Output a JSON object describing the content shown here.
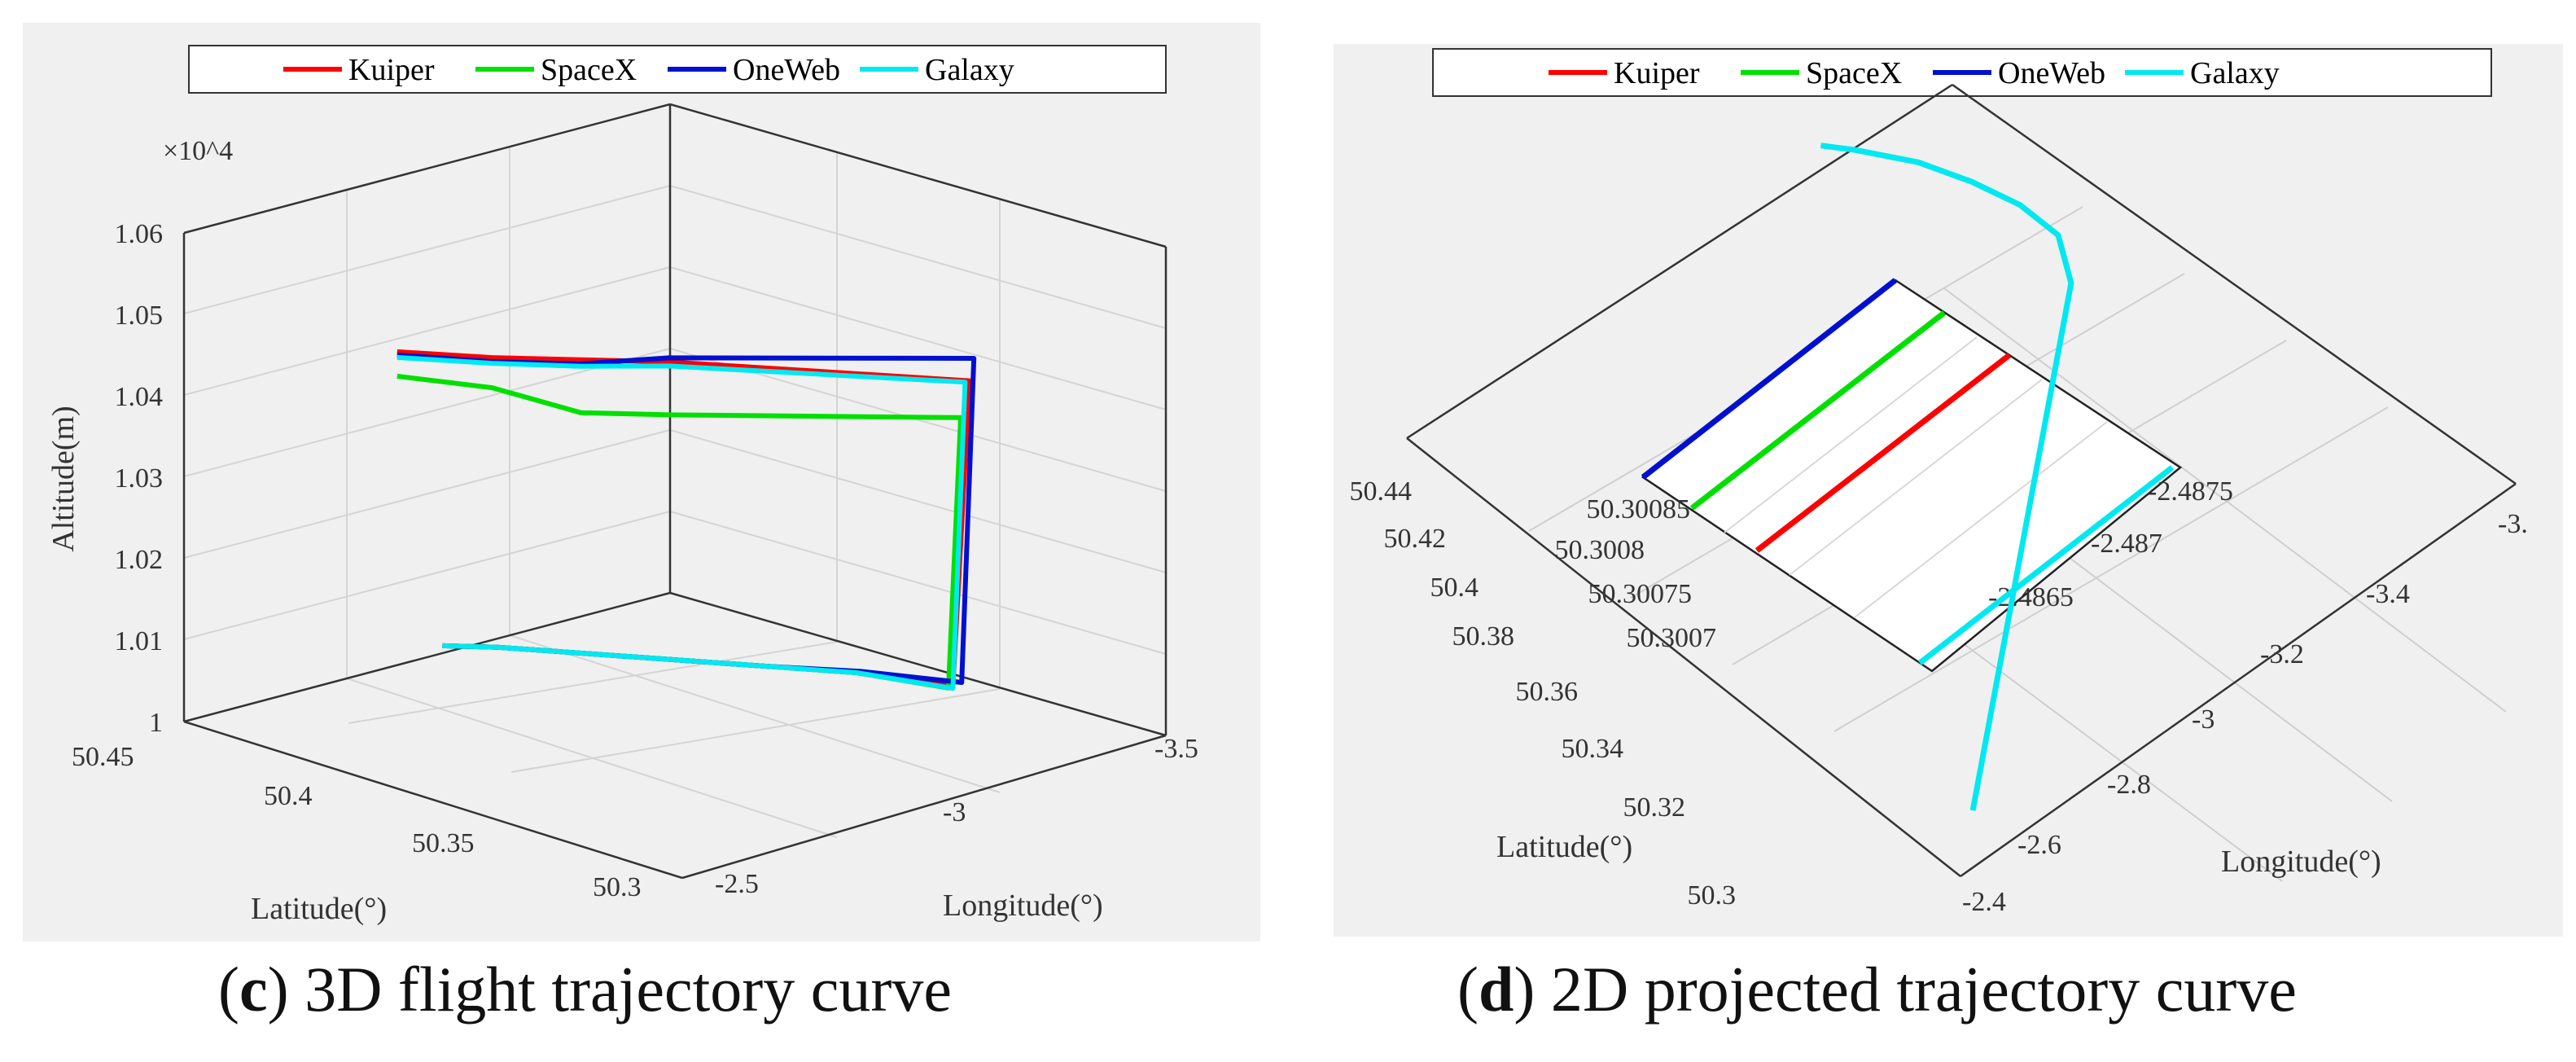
{
  "legend": [
    "Kuiper",
    "SpaceX",
    "OneWeb",
    "Galaxy"
  ],
  "colors": {
    "Kuiper": "#ff0000",
    "SpaceX": "#00e000",
    "OneWeb": "#0010d0",
    "Galaxy": "#00e8f0",
    "grid": "#d8d8d8",
    "axis": "#222222",
    "background": "#f0f0f0"
  },
  "captions": {
    "c": {
      "letter": "c",
      "text": " 3D flight trajectory curve",
      "open": "(",
      "close": ")"
    },
    "d": {
      "letter": "d",
      "text": " 2D projected trajectory curve",
      "open": "(",
      "close": ")"
    }
  },
  "chart_data": [
    {
      "type": "line",
      "panel": "c",
      "view": "3D",
      "zlabel": "Altitude(m)",
      "xlabel": "Latitude(°)",
      "ylabel": "Longitude(°)",
      "zscale_note": "×10^4",
      "z_ticks": [
        "1.06",
        "1.05",
        "1.04",
        "1.03",
        "1.02",
        "1.01",
        "1"
      ],
      "lat_ticks": [
        "50.45",
        "50.4",
        "50.35",
        "50.3"
      ],
      "lon_ticks": [
        "-2.5",
        "-3",
        "-3.5"
      ],
      "zlim": [
        10000,
        10600
      ],
      "latlim": [
        50.3,
        50.45
      ],
      "lonlim": [
        -3.6,
        -2.5
      ],
      "grid": true,
      "legend_position": "top",
      "series": [
        {
          "name": "Kuiper",
          "lat": [
            50.452,
            50.43,
            50.41,
            50.39,
            50.33,
            50.335,
            50.36,
            50.38,
            50.41,
            50.435,
            50.445
          ],
          "lon": [
            -3.0,
            -3.05,
            -3.1,
            -3.15,
            -3.38,
            -3.38,
            -3.35,
            -3.3,
            -3.2,
            -3.1,
            -3.05
          ],
          "alt": [
            10372,
            10385,
            10400,
            10415,
            10432,
            10050,
            10040,
            10030,
            10020,
            10015,
            10012
          ]
        },
        {
          "name": "SpaceX",
          "lat": [
            50.452,
            50.43,
            50.41,
            50.39,
            50.33,
            50.335,
            50.36,
            50.38,
            50.41,
            50.435,
            50.445
          ],
          "lon": [
            -3.0,
            -3.05,
            -3.1,
            -3.15,
            -3.36,
            -3.37,
            -3.35,
            -3.3,
            -3.2,
            -3.1,
            -3.05
          ],
          "alt": [
            10342,
            10348,
            10335,
            10350,
            10390,
            10050,
            10040,
            10030,
            10020,
            10015,
            10012
          ]
        },
        {
          "name": "OneWeb",
          "lat": [
            50.452,
            50.43,
            50.41,
            50.39,
            50.33,
            50.335,
            50.36,
            50.38,
            50.41,
            50.435,
            50.445
          ],
          "lon": [
            -3.0,
            -3.05,
            -3.1,
            -3.15,
            -3.39,
            -3.4,
            -3.36,
            -3.3,
            -3.2,
            -3.1,
            -3.05
          ],
          "alt": [
            10368,
            10380,
            10395,
            10420,
            10458,
            10052,
            10040,
            10030,
            10020,
            10015,
            10012
          ]
        },
        {
          "name": "Galaxy",
          "lat": [
            50.452,
            50.43,
            50.41,
            50.39,
            50.33,
            50.335,
            50.36,
            50.38,
            50.41,
            50.435,
            50.445
          ],
          "lon": [
            -3.0,
            -3.05,
            -3.1,
            -3.15,
            -3.37,
            -3.38,
            -3.35,
            -3.3,
            -3.2,
            -3.1,
            -3.05
          ],
          "alt": [
            10365,
            10378,
            10392,
            10410,
            10432,
            10048,
            10040,
            10030,
            10020,
            10015,
            10012
          ]
        }
      ]
    },
    {
      "type": "line",
      "panel": "d",
      "view": "2D projection",
      "xlabel": "Latitude(°)",
      "ylabel": "Longitude(°)",
      "lat_ticks": [
        "50.44",
        "50.42",
        "50.4",
        "50.38",
        "50.36",
        "50.34",
        "50.32",
        "50.3"
      ],
      "lon_ticks": [
        "-2.4",
        "-2.6",
        "-2.8",
        "-3",
        "-3.2",
        "-3.4",
        "-3."
      ],
      "inset": {
        "lat_ticks": [
          "50.30085",
          "50.3008",
          "50.30075",
          "50.3007"
        ],
        "lon_ticks": [
          "-2.4875",
          "-2.487",
          "-2.4865"
        ]
      },
      "grid": true,
      "legend_position": "top",
      "series": [
        {
          "name": "Galaxy",
          "lat": [
            50.31,
            50.33,
            50.35,
            50.37,
            50.39,
            50.4,
            50.41,
            50.42,
            50.43,
            50.44,
            50.445
          ],
          "lon": [
            -2.5,
            -2.7,
            -2.9,
            -3.1,
            -3.3,
            -3.35,
            -3.35,
            -3.33,
            -3.3,
            -3.25,
            -3.22
          ]
        }
      ]
    }
  ]
}
